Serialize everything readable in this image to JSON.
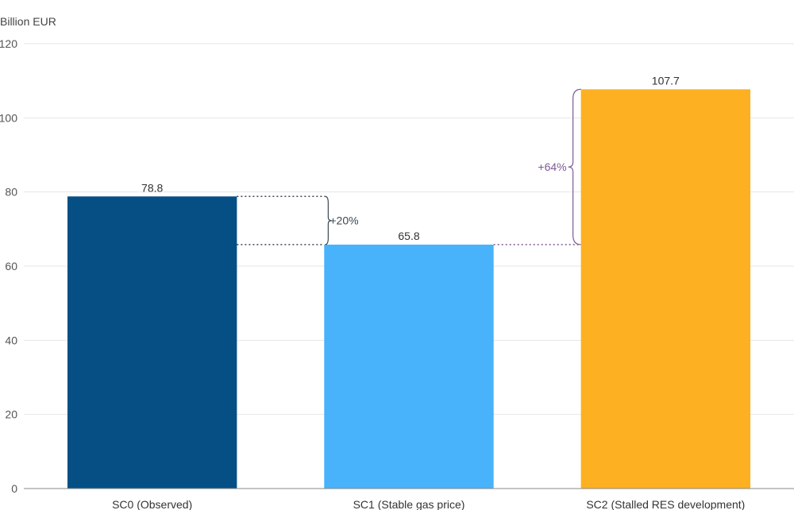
{
  "chart_data": {
    "type": "bar",
    "ylabel": "Billion EUR",
    "ylim": [
      0,
      120
    ],
    "yticks": [
      0,
      20,
      40,
      60,
      80,
      100,
      120
    ],
    "grid": true,
    "categories": [
      "SC0 (Observed)",
      "SC1 (Stable gas price)",
      "SC2 (Stalled RES development)"
    ],
    "values": [
      78.8,
      65.8,
      107.7
    ],
    "value_labels": [
      "78.8",
      "65.8",
      "107.7"
    ],
    "colors": [
      "#054f85",
      "#48b2fb",
      "#fdb022"
    ],
    "annotations": [
      {
        "from_category": 0,
        "to_category": 1,
        "from_value": 78.8,
        "to_value": 65.8,
        "label": "+20%",
        "color": "#3a4a52"
      },
      {
        "from_category": 1,
        "to_category": 2,
        "from_value": 65.8,
        "to_value": 107.7,
        "label": "+64%",
        "color": "#7d5a94"
      }
    ]
  }
}
